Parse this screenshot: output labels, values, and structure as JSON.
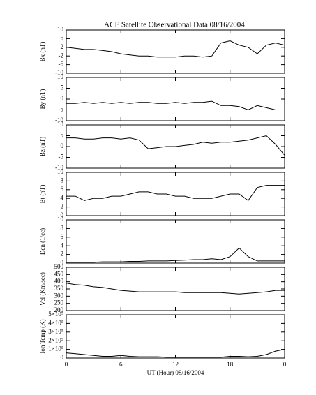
{
  "chart_data": [
    {
      "type": "line",
      "title": "ACE Satellite Observational Data   08/16/2004",
      "ylabel": "Bx (nT)",
      "color": "#000000",
      "x": [
        0,
        1,
        2,
        3,
        4,
        5,
        6,
        7,
        8,
        9,
        10,
        11,
        12,
        13,
        14,
        15,
        16,
        17,
        18,
        19,
        20,
        21,
        22,
        23,
        24
      ],
      "xlim": [
        0,
        24
      ],
      "values": [
        2,
        1.5,
        1,
        1,
        0.5,
        0,
        -1,
        -1.5,
        -2,
        -2,
        -2.5,
        -2.5,
        -2.5,
        -2,
        -2,
        -2.5,
        -2,
        4,
        5,
        3,
        2,
        -1,
        3,
        4,
        3
      ],
      "ylim": [
        -10,
        10
      ],
      "yticks": [
        -10,
        -6,
        -2,
        2,
        6,
        10
      ]
    },
    {
      "type": "line",
      "ylabel": "By (nT)",
      "color": "#000000",
      "x": [
        0,
        1,
        2,
        3,
        4,
        5,
        6,
        7,
        8,
        9,
        10,
        11,
        12,
        13,
        14,
        15,
        16,
        17,
        18,
        19,
        20,
        21,
        22,
        23,
        24
      ],
      "xlim": [
        0,
        24
      ],
      "values": [
        -2,
        -2,
        -1.5,
        -2,
        -1.5,
        -2,
        -1.5,
        -2,
        -1.5,
        -1.5,
        -2,
        -2,
        -1.5,
        -2,
        -1.5,
        -1.5,
        -1,
        -3,
        -3,
        -3.5,
        -5,
        -3,
        -4,
        -5,
        -5
      ],
      "ylim": [
        -10,
        10
      ],
      "yticks": [
        -10,
        -5,
        0,
        5,
        10
      ]
    },
    {
      "type": "line",
      "ylabel": "Bz (nT)",
      "color": "#000000",
      "x": [
        0,
        1,
        2,
        3,
        4,
        5,
        6,
        7,
        8,
        9,
        10,
        11,
        12,
        13,
        14,
        15,
        16,
        17,
        18,
        19,
        20,
        21,
        22,
        23,
        24
      ],
      "xlim": [
        0,
        24
      ],
      "values": [
        4,
        4,
        3.5,
        3.5,
        4,
        4,
        3.5,
        4,
        3,
        -1,
        -0.5,
        0,
        0,
        0.5,
        1,
        2,
        1.5,
        2,
        2,
        2.5,
        3,
        4,
        5,
        1,
        -4
      ],
      "ylim": [
        -10,
        10
      ],
      "yticks": [
        -10,
        -5,
        0,
        5,
        10
      ]
    },
    {
      "type": "line",
      "ylabel": "Bt (nT)",
      "color": "#000000",
      "x": [
        0,
        1,
        2,
        3,
        4,
        5,
        6,
        7,
        8,
        9,
        10,
        11,
        12,
        13,
        14,
        15,
        16,
        17,
        18,
        19,
        20,
        21,
        22,
        23,
        24
      ],
      "xlim": [
        0,
        24
      ],
      "values": [
        4.5,
        4.5,
        3.5,
        4,
        4,
        4.5,
        4.5,
        5,
        5.5,
        5.5,
        5,
        5,
        4.5,
        4.5,
        4,
        4,
        4,
        4.5,
        5,
        5,
        3.5,
        6.5,
        7,
        7,
        7
      ],
      "ylim": [
        0,
        10
      ],
      "yticks": [
        0,
        2,
        4,
        6,
        8,
        10
      ]
    },
    {
      "type": "line",
      "ylabel": "Den (1/cc)",
      "color": "#000000",
      "x": [
        0,
        1,
        2,
        3,
        4,
        5,
        6,
        7,
        8,
        9,
        10,
        11,
        12,
        13,
        14,
        15,
        16,
        17,
        18,
        19,
        20,
        21,
        22,
        23,
        24
      ],
      "xlim": [
        0,
        24
      ],
      "values": [
        0.2,
        0.2,
        0.2,
        0.2,
        0.3,
        0.3,
        0.3,
        0.4,
        0.4,
        0.5,
        0.5,
        0.5,
        0.6,
        0.7,
        0.8,
        0.8,
        1,
        0.8,
        1.5,
        3.5,
        1.5,
        0.5,
        0.5,
        0.5,
        0.5
      ],
      "ylim": [
        0,
        10
      ],
      "yticks": [
        0,
        2,
        4,
        6,
        8,
        10
      ]
    },
    {
      "type": "line",
      "ylabel": "Vel (Km/sec)",
      "color": "#000000",
      "x": [
        0,
        1,
        2,
        3,
        4,
        5,
        6,
        7,
        8,
        9,
        10,
        11,
        12,
        13,
        14,
        15,
        16,
        17,
        18,
        19,
        20,
        21,
        22,
        23,
        24
      ],
      "xlim": [
        0,
        24
      ],
      "values": [
        390,
        380,
        375,
        365,
        360,
        350,
        340,
        335,
        330,
        330,
        330,
        330,
        330,
        325,
        325,
        325,
        325,
        325,
        320,
        315,
        320,
        325,
        330,
        340,
        340
      ],
      "ylim": [
        200,
        500
      ],
      "yticks": [
        200,
        250,
        300,
        350,
        400,
        450,
        500
      ]
    },
    {
      "type": "line",
      "ylabel": "Ion Temp (K)",
      "color": "#000000",
      "x": [
        0,
        1,
        2,
        3,
        4,
        5,
        6,
        7,
        8,
        9,
        10,
        11,
        12,
        13,
        14,
        15,
        16,
        17,
        18,
        19,
        20,
        21,
        22,
        23,
        24
      ],
      "xlim": [
        0,
        24
      ],
      "values": [
        60000,
        50000,
        40000,
        30000,
        20000,
        20000,
        30000,
        20000,
        15000,
        15000,
        15000,
        10000,
        10000,
        10000,
        10000,
        10000,
        10000,
        10000,
        20000,
        20000,
        15000,
        20000,
        40000,
        80000,
        100000
      ],
      "ylim": [
        0,
        500000
      ],
      "yticks": [
        0,
        {
          "value": 100000,
          "label": "1×10⁵"
        },
        {
          "value": 200000,
          "label": "2×10⁵"
        },
        {
          "value": 300000,
          "label": "3×10⁵"
        },
        {
          "value": 400000,
          "label": "4×10⁵"
        },
        {
          "value": 500000,
          "label": "5×10⁵"
        }
      ],
      "xticks": [
        0,
        6,
        12,
        18,
        {
          "value": 24,
          "label": "0"
        }
      ],
      "xlabel": "UT (Hour)  08/16/2004"
    }
  ]
}
